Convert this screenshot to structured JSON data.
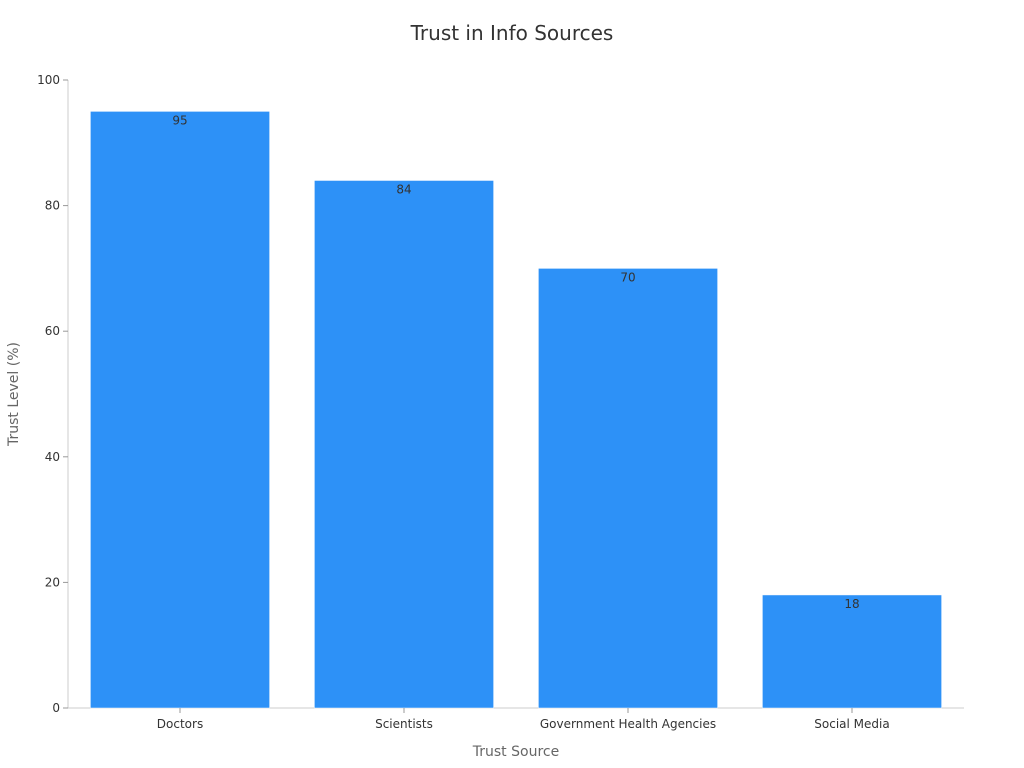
{
  "chart_data": {
    "type": "bar",
    "title": "Trust in Info Sources",
    "xlabel": "Trust Source",
    "ylabel": "Trust Level (%)",
    "categories": [
      "Doctors",
      "Scientists",
      "Government Health Agencies",
      "Social Media"
    ],
    "values": [
      95,
      84,
      70,
      18
    ],
    "data_labels": [
      "95",
      "84",
      "70",
      "18"
    ],
    "ylim": [
      0,
      100
    ],
    "yticks": [
      0,
      20,
      40,
      60,
      80,
      100
    ],
    "grid": false,
    "bar_color": "#2d91f7"
  }
}
